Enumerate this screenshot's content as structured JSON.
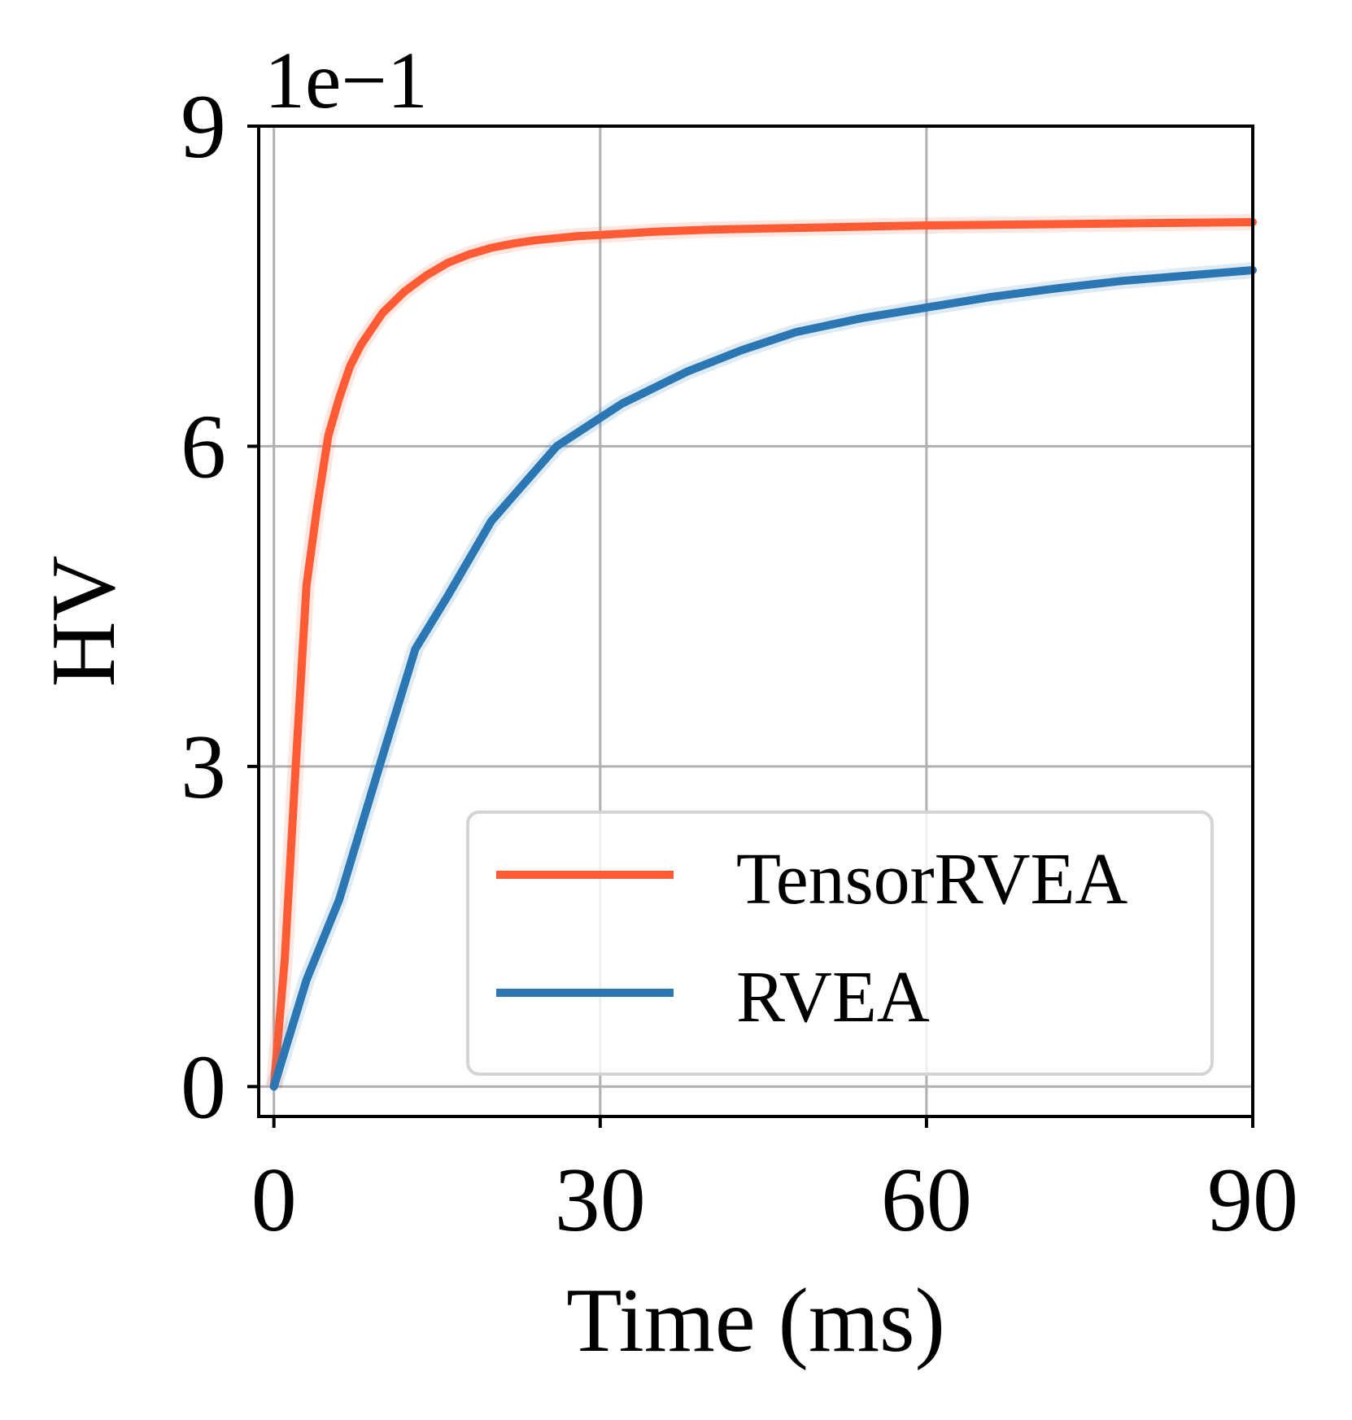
{
  "chart_data": {
    "type": "line",
    "xlabel": "Time (ms)",
    "ylabel": "HV",
    "y_offset_label": "1e−1",
    "xlim": [
      -1.4,
      90
    ],
    "ylim": [
      -0.28,
      9
    ],
    "x_ticks": [
      0,
      30,
      60,
      90
    ],
    "x_tick_labels": [
      "0",
      "30",
      "60",
      "90"
    ],
    "y_ticks": [
      0,
      3,
      6,
      9
    ],
    "y_tick_labels": [
      "0",
      "3",
      "6",
      "9"
    ],
    "grid": true,
    "legend_position": "lower-right",
    "series": [
      {
        "name": "TensorRVEA",
        "color": "#ff5c35",
        "x": [
          0,
          1,
          2,
          3,
          4,
          5,
          6,
          7,
          8,
          9,
          10,
          12,
          14,
          16,
          18,
          20,
          22,
          24,
          26,
          28,
          30,
          35,
          40,
          45,
          50,
          55,
          60,
          70,
          80,
          90
        ],
        "y": [
          0,
          1.2,
          3.0,
          4.7,
          5.45,
          6.1,
          6.45,
          6.75,
          6.95,
          7.1,
          7.25,
          7.45,
          7.6,
          7.72,
          7.8,
          7.86,
          7.9,
          7.93,
          7.95,
          7.97,
          7.98,
          8.01,
          8.03,
          8.04,
          8.05,
          8.06,
          8.07,
          8.08,
          8.09,
          8.1
        ]
      },
      {
        "name": "RVEA",
        "color": "#2a77b4",
        "x": [
          0,
          3,
          6,
          10,
          13,
          16,
          20,
          26,
          32,
          38,
          43,
          48,
          54,
          60,
          66,
          72,
          78,
          84,
          90
        ],
        "y": [
          0,
          1.0,
          1.75,
          3.1,
          4.1,
          4.6,
          5.3,
          6.0,
          6.4,
          6.7,
          6.9,
          7.07,
          7.2,
          7.3,
          7.4,
          7.48,
          7.55,
          7.6,
          7.65
        ]
      }
    ]
  }
}
